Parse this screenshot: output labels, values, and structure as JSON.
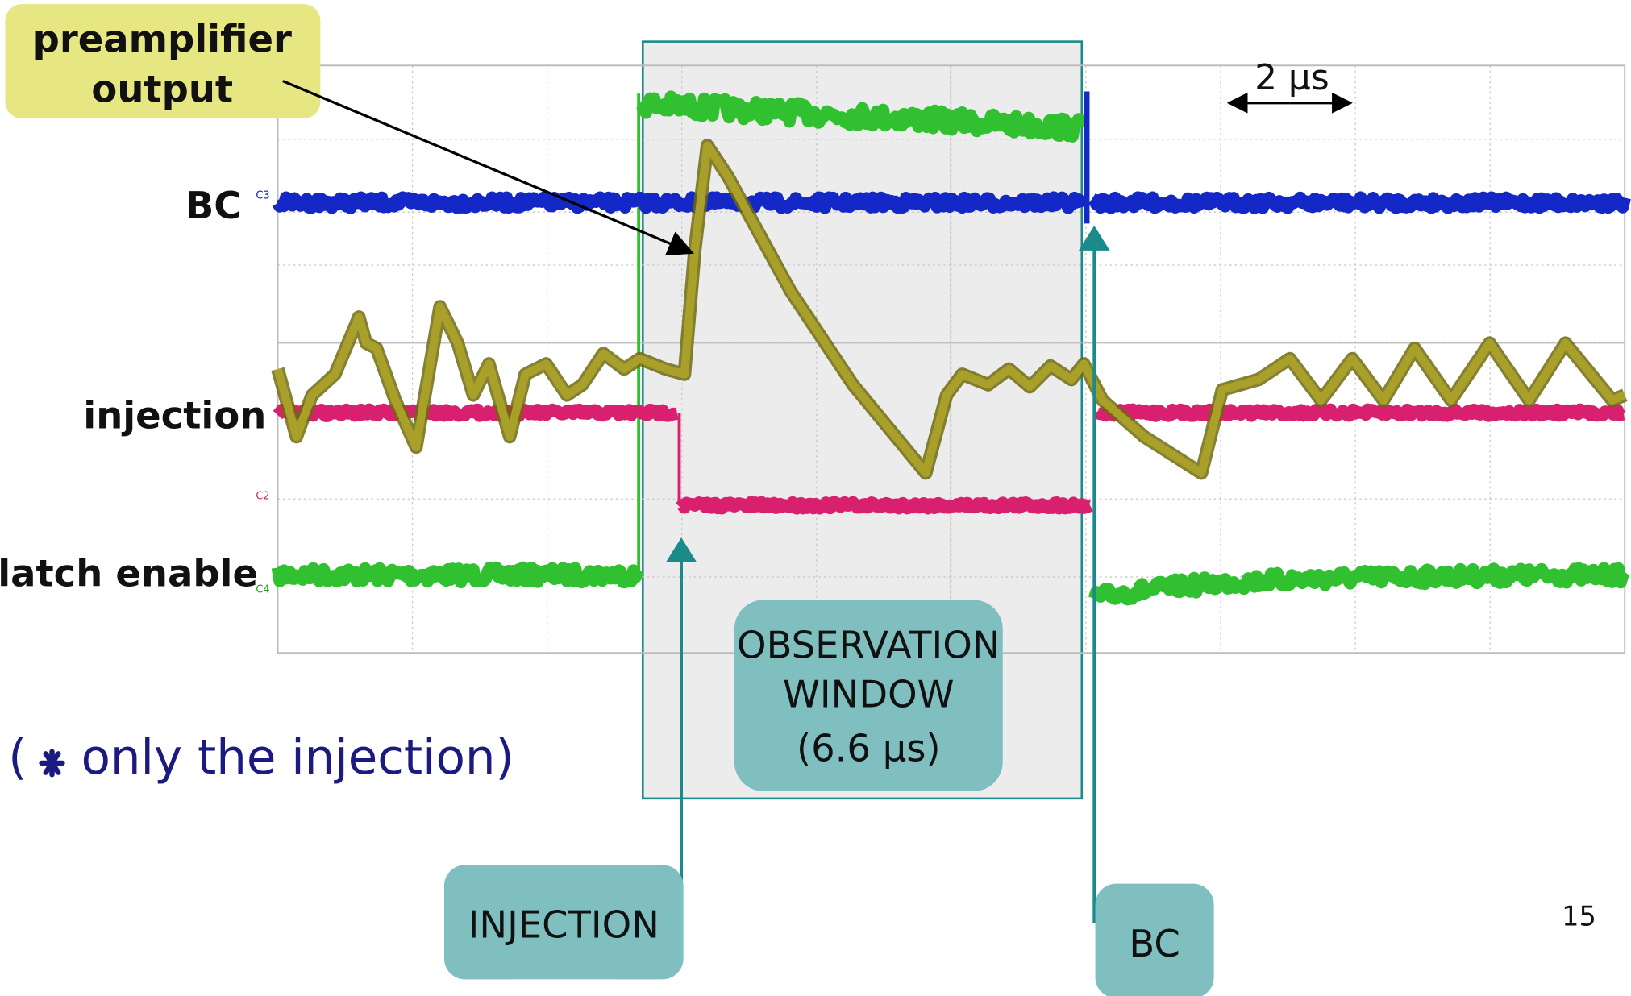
{
  "slide": {
    "labels": {
      "preamplifier": [
        "preamplifier",
        "output"
      ],
      "bc": "BC",
      "injection": "injection",
      "latch_enable": "latch enable"
    },
    "channels": [
      "C3",
      "C2",
      "C4"
    ],
    "scale": "2 μs",
    "note": {
      "open": "(",
      "text": "only the injection)"
    },
    "callouts": {
      "observation_window": [
        "OBSERVATION",
        "WINDOW",
        "(6.6 μs)"
      ],
      "injection": "INJECTION",
      "bc": "BC"
    },
    "page_number": "15"
  }
}
